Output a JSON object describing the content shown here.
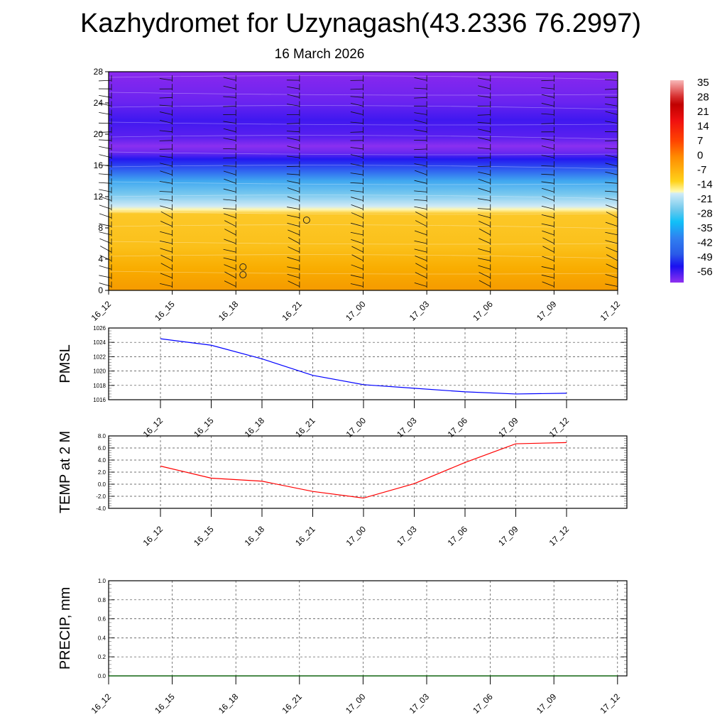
{
  "title": "Kazhydromet for Uzynagash(43.2336 76.2997)",
  "subtitle": "16 March 2026",
  "chart_data": [
    {
      "type": "heatmap",
      "name": "temperature-height cross-section with wind barbs",
      "x_ticks": [
        "16_12",
        "16_15",
        "16_18",
        "16_21",
        "17_00",
        "17_03",
        "17_06",
        "17_09",
        "17_12"
      ],
      "y_ticks": [
        0,
        4,
        8,
        12,
        16,
        20,
        24,
        28
      ],
      "ylim": [
        0,
        28
      ],
      "colorbar_labels": [
        35,
        28,
        21,
        14,
        7,
        0,
        -7,
        -14,
        -21,
        -28,
        -35,
        -42,
        -49,
        -56
      ],
      "colorbar_range": [
        -63,
        35
      ],
      "calm_markers": [
        {
          "x": "16_18",
          "y": 2
        },
        {
          "x": "16_18",
          "y": 3
        },
        {
          "x": "16_21",
          "y": 9
        }
      ]
    },
    {
      "type": "line",
      "ylabel": "PMSL",
      "categories": [
        "16_12",
        "16_15",
        "16_18",
        "16_21",
        "17_00",
        "17_03",
        "17_06",
        "17_09",
        "17_12"
      ],
      "values": [
        1024.5,
        1023.6,
        1021.7,
        1019.4,
        1018.1,
        1017.6,
        1017.1,
        1016.8,
        1016.9
      ],
      "ylim": [
        1016,
        1026
      ],
      "y_ticks": [
        "1016",
        "1018",
        "1020",
        "1022",
        "1024",
        "1026"
      ],
      "color": "#0000ff",
      "grid": true
    },
    {
      "type": "line",
      "ylabel": "TEMP at 2 M",
      "categories": [
        "16_12",
        "16_15",
        "16_18",
        "16_21",
        "17_00",
        "17_03",
        "17_06",
        "17_09",
        "17_12"
      ],
      "values": [
        3.0,
        1.0,
        0.5,
        -1.2,
        -2.3,
        0.1,
        3.6,
        6.7,
        6.9
      ],
      "ylim": [
        -4,
        8
      ],
      "y_ticks": [
        "-4.0",
        "-2.0",
        "0.0",
        "2.0",
        "4.0",
        "6.0",
        "8.0"
      ],
      "color": "#ff0000",
      "grid": true
    },
    {
      "type": "line",
      "ylabel": "PRECIP, mm",
      "categories": [
        "16_12",
        "16_15",
        "16_18",
        "16_21",
        "17_00",
        "17_03",
        "17_06",
        "17_09",
        "17_12"
      ],
      "values": [
        0,
        0,
        0,
        0,
        0,
        0,
        0,
        0,
        0
      ],
      "ylim": [
        0,
        1
      ],
      "y_ticks": [
        "0.0",
        "0.2",
        "0.4",
        "0.6",
        "0.8",
        "1.0"
      ],
      "color": "#006400",
      "grid": true
    }
  ]
}
